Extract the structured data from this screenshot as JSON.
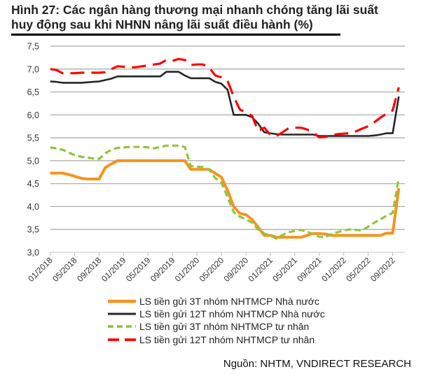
{
  "chart_data": {
    "type": "line",
    "title": "Hình 27: Các ngân hàng thương mại nhanh chóng tăng lãi suất huy động sau khi NHNN nâng lãi suất điều hành (%)",
    "title_lines": [
      "Hình 27: Các ngân hàng thương mại nhanh chóng tăng lãi suất",
      "huy động sau khi NHNN nâng lãi suất điều hành (%)"
    ],
    "xlabel": "",
    "ylabel": "",
    "ylim": [
      3.0,
      7.5
    ],
    "y_ticks": [
      "3,0",
      "3,5",
      "4,0",
      "4,5",
      "5,0",
      "5,5",
      "6,0",
      "6,5",
      "7,0",
      "7,5"
    ],
    "x_start": "01/2018",
    "x_frequency": "monthly",
    "x_ticks": [
      "01/2018",
      "05/2018",
      "09/2018",
      "01/2019",
      "05/2019",
      "09/2019",
      "01/2020",
      "05/2020",
      "09/2020",
      "01/2021",
      "05/2021",
      "09/2021",
      "01/2022",
      "05/2022",
      "09/2022"
    ],
    "grid": "horizontal",
    "legend_position": "bottom",
    "series": [
      {
        "name": "LS tiền gửi 3T nhóm NHTMCP Nhà nước",
        "color": "#f7931e",
        "style": "solid",
        "values": [
          4.73,
          4.73,
          4.73,
          4.7,
          4.66,
          4.62,
          4.6,
          4.6,
          4.6,
          4.85,
          4.93,
          5.0,
          5.0,
          5.0,
          5.0,
          5.0,
          5.0,
          5.0,
          5.0,
          5.0,
          5.0,
          5.0,
          5.0,
          4.81,
          4.81,
          4.81,
          4.81,
          4.72,
          4.64,
          4.35,
          4.0,
          3.85,
          3.82,
          3.72,
          3.55,
          3.37,
          3.37,
          3.33,
          3.33,
          3.33,
          3.33,
          3.33,
          3.37,
          3.41,
          3.41,
          3.4,
          3.37,
          3.37,
          3.37,
          3.37,
          3.37,
          3.37,
          3.37,
          3.37,
          3.37,
          3.42,
          3.42,
          4.4
        ]
      },
      {
        "name": "LS tiền gửi 12T nhóm NHTMCP Nhà nước",
        "color": "#262626",
        "style": "solid",
        "values": [
          6.73,
          6.72,
          6.7,
          6.7,
          6.7,
          6.7,
          6.71,
          6.72,
          6.73,
          6.76,
          6.79,
          6.84,
          6.84,
          6.84,
          6.84,
          6.84,
          6.84,
          6.84,
          6.84,
          6.94,
          6.94,
          6.94,
          6.86,
          6.8,
          6.8,
          6.8,
          6.8,
          6.72,
          6.68,
          6.55,
          6.0,
          6.0,
          6.0,
          5.95,
          5.81,
          5.62,
          5.6,
          5.58,
          5.57,
          5.57,
          5.57,
          5.57,
          5.57,
          5.57,
          5.54,
          5.54,
          5.54,
          5.54,
          5.54,
          5.54,
          5.54,
          5.54,
          5.54,
          5.55,
          5.57,
          5.6,
          5.6,
          6.4
        ]
      },
      {
        "name": "LS tiền gửi 3T nhóm NHTMCP tư nhân",
        "color": "#8dc63f",
        "style": "dashed",
        "values": [
          5.29,
          5.27,
          5.24,
          5.18,
          5.12,
          5.09,
          5.07,
          5.05,
          5.04,
          5.16,
          5.24,
          5.28,
          5.29,
          5.3,
          5.3,
          5.3,
          5.29,
          5.27,
          5.3,
          5.33,
          5.33,
          5.33,
          5.3,
          4.88,
          4.87,
          4.86,
          4.8,
          4.62,
          4.52,
          4.2,
          3.88,
          3.78,
          3.72,
          3.65,
          3.5,
          3.41,
          3.36,
          3.3,
          3.38,
          3.44,
          3.47,
          3.49,
          3.45,
          3.4,
          3.34,
          3.33,
          3.4,
          3.44,
          3.48,
          3.5,
          3.49,
          3.48,
          3.56,
          3.65,
          3.72,
          3.8,
          3.86,
          4.62
        ]
      },
      {
        "name": "LS tiền gửi 12T nhóm NHTMCP tư nhân",
        "color": "#ff0000",
        "style": "long-dash",
        "values": [
          7.0,
          6.98,
          6.91,
          6.91,
          6.91,
          6.92,
          6.92,
          6.92,
          6.92,
          6.93,
          7.0,
          7.06,
          7.05,
          7.04,
          7.04,
          7.06,
          7.08,
          7.1,
          7.12,
          7.2,
          7.18,
          7.22,
          7.2,
          7.09,
          7.1,
          7.1,
          7.03,
          6.86,
          6.82,
          6.74,
          6.4,
          6.12,
          6.05,
          5.98,
          5.65,
          5.72,
          5.56,
          5.54,
          5.62,
          5.71,
          5.72,
          5.72,
          5.68,
          5.62,
          5.51,
          5.52,
          5.56,
          5.58,
          5.59,
          5.6,
          5.64,
          5.7,
          5.75,
          5.84,
          5.94,
          6.03,
          6.1,
          6.6
        ]
      }
    ]
  },
  "source": "Nguồn: NHTM, VNDIRECT RESEARCH"
}
